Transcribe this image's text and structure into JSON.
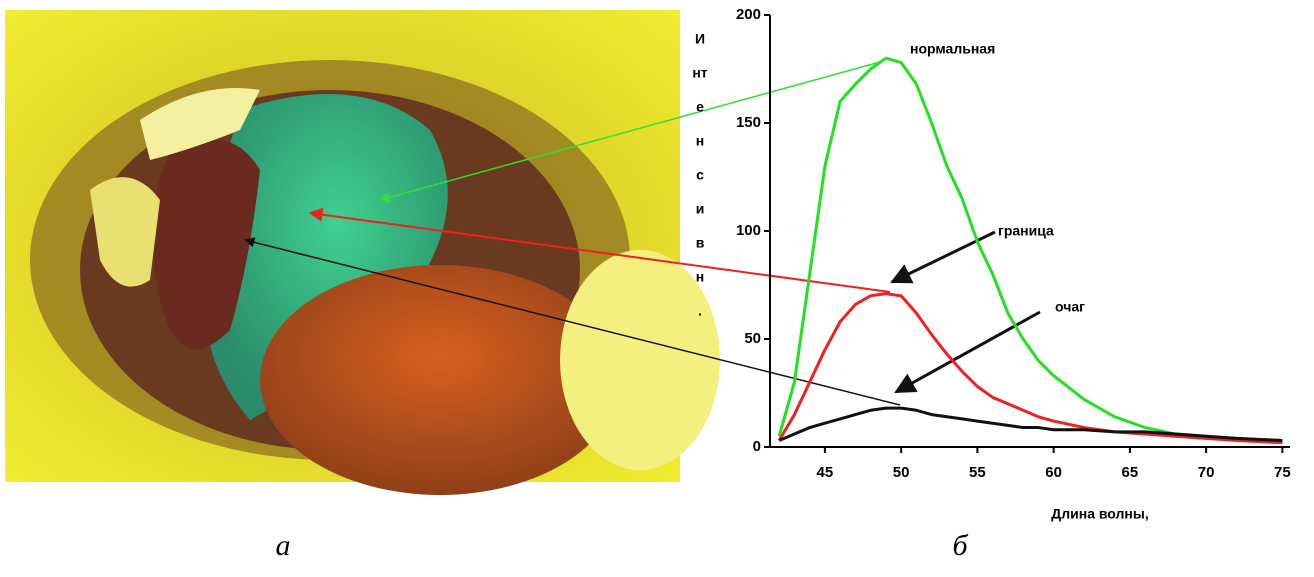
{
  "chart_data": {
    "type": "line",
    "y_label_lines": [
      "И",
      "нт",
      "е",
      "н",
      "с",
      "и",
      "в",
      "н",
      "."
    ],
    "x_label": "Длина волны,",
    "annotations": [
      "нормальная",
      "граница",
      "очаг"
    ],
    "captions": [
      "а",
      "б"
    ],
    "x": [
      42,
      43,
      44,
      45,
      46,
      47,
      48,
      49,
      50,
      51,
      52,
      53,
      54,
      55,
      56,
      57,
      58,
      59,
      60,
      62,
      64,
      66,
      68,
      70,
      72,
      75
    ],
    "series": [
      {
        "color": "#22e022",
        "values": [
          5,
          30,
          80,
          130,
          160,
          168,
          175,
          180,
          178,
          168,
          150,
          130,
          115,
          95,
          80,
          62,
          50,
          40,
          33,
          22,
          14,
          9,
          6,
          5,
          4,
          3
        ]
      },
      {
        "color": "#f02020",
        "values": [
          3,
          15,
          30,
          45,
          58,
          66,
          70,
          71,
          70,
          62,
          52,
          43,
          35,
          28,
          23,
          20,
          17,
          14,
          12,
          9,
          7,
          6,
          5,
          4,
          3,
          2
        ]
      },
      {
        "color": "#111111",
        "values": [
          3,
          6,
          9,
          11,
          13,
          15,
          17,
          18,
          18,
          17,
          15,
          14,
          13,
          12,
          11,
          10,
          9,
          9,
          8,
          8,
          7,
          7,
          6,
          5,
          4,
          3
        ]
      }
    ],
    "xlim": [
      41.4,
      75.5
    ],
    "xticks": [
      45,
      50,
      55,
      60,
      65,
      70,
      75
    ],
    "ylim": [
      0,
      200
    ],
    "yticks": [
      0,
      50,
      100,
      150,
      200
    ]
  }
}
